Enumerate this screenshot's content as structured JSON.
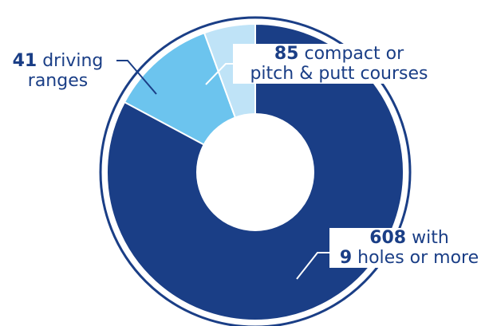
{
  "chart_data": {
    "type": "pie",
    "style": "donut",
    "categories": [
      "9 holes or more",
      "compact or pitch & putt courses",
      "driving ranges"
    ],
    "values": [
      608,
      85,
      41
    ],
    "colors": [
      "#1a3e86",
      "#6cc4ee",
      "#bfe3f7"
    ],
    "title": "",
    "labels": [
      {
        "value": "608",
        "text1": "with",
        "value2": "9",
        "text2": "holes or more"
      },
      {
        "value": "85",
        "text1": "compact or",
        "text2": "pitch & putt courses"
      },
      {
        "value": "41",
        "text1": "driving",
        "text2": "ranges"
      }
    ]
  }
}
